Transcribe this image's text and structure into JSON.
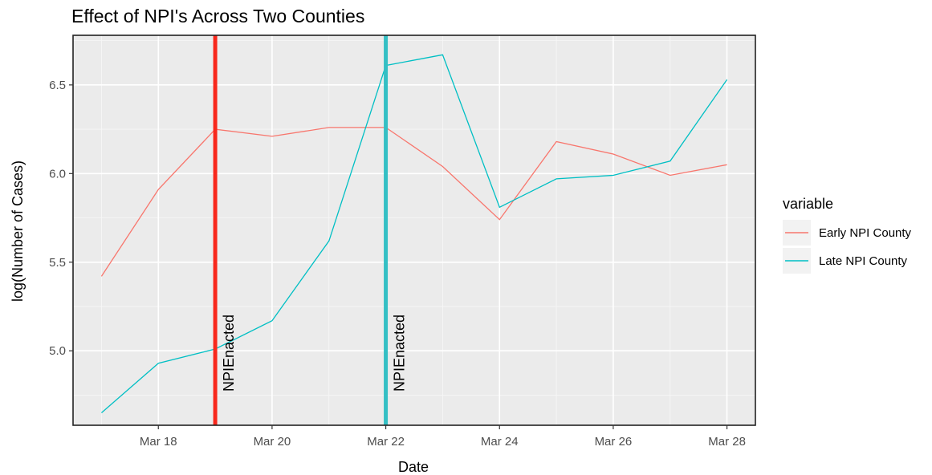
{
  "chart_data": {
    "type": "line",
    "title": "Effect of NPI's Across Two Counties",
    "xlabel": "Date",
    "ylabel": "log(Number of Cases)",
    "x_unit": "day of March",
    "xlim": [
      16.5,
      28.5
    ],
    "ylim": [
      4.58,
      6.78
    ],
    "xticks": [
      {
        "value": 18,
        "label": "Mar 18"
      },
      {
        "value": 20,
        "label": "Mar 20"
      },
      {
        "value": 22,
        "label": "Mar 22"
      },
      {
        "value": 24,
        "label": "Mar 24"
      },
      {
        "value": 26,
        "label": "Mar 26"
      },
      {
        "value": 28,
        "label": "Mar 28"
      }
    ],
    "yticks": [
      {
        "value": 5.0,
        "label": "5.0"
      },
      {
        "value": 5.5,
        "label": "5.5"
      },
      {
        "value": 6.0,
        "label": "6.0"
      },
      {
        "value": 6.5,
        "label": "6.5"
      }
    ],
    "grid": true,
    "legend": {
      "title": "variable",
      "position": "right"
    },
    "series": [
      {
        "name": "Early NPI County",
        "color": "#F8766D",
        "x": [
          17,
          18,
          19,
          20,
          21,
          22,
          23,
          24,
          25,
          26,
          27,
          28
        ],
        "y": [
          5.42,
          5.91,
          6.25,
          6.21,
          6.26,
          6.26,
          6.04,
          5.74,
          6.18,
          6.11,
          5.99,
          6.05
        ]
      },
      {
        "name": "Late NPI County",
        "color": "#00BFC4",
        "x": [
          17,
          18,
          19,
          20,
          21,
          22,
          23,
          24,
          25,
          26,
          27,
          28
        ],
        "y": [
          4.65,
          4.93,
          5.01,
          5.17,
          5.62,
          6.61,
          6.67,
          5.81,
          5.97,
          5.99,
          6.07,
          6.53
        ]
      }
    ],
    "vlines": [
      {
        "x": 19,
        "color": "#F8281C",
        "label": "NPIEnacted"
      },
      {
        "x": 22,
        "color": "#33BFC4",
        "label": "NPIEnacted"
      }
    ]
  }
}
